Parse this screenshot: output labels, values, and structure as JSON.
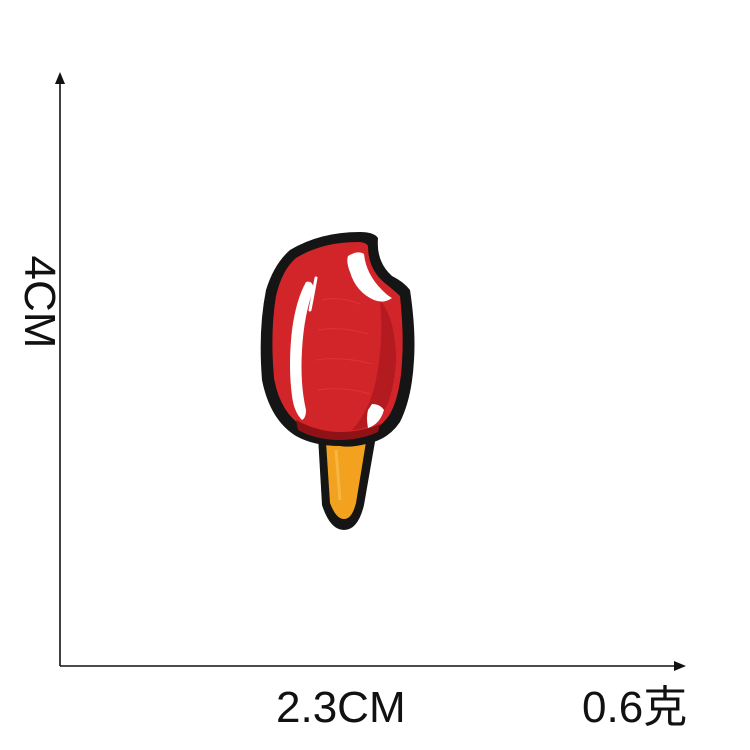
{
  "dimensions": {
    "height": "4CM",
    "width": "2.3CM",
    "weight": "0.6克"
  },
  "colors": {
    "background": "#ffffff",
    "axis": "#111111",
    "patch_border": "#151515",
    "popsicle_red": "#d2252a",
    "popsicle_dark_red": "#8f1216",
    "highlight": "#ffffff",
    "stick": "#f2a21e"
  }
}
